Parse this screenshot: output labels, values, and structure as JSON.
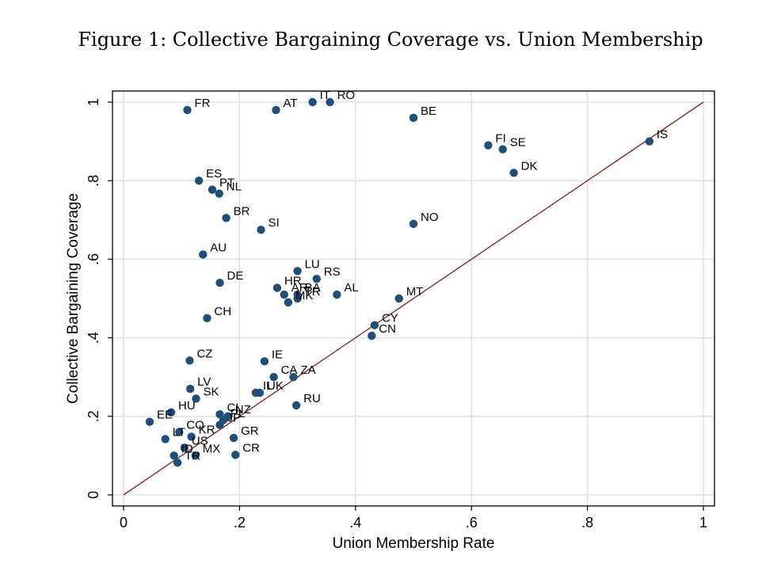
{
  "title": "Figure 1: Collective Bargaining Coverage vs. Union Membership",
  "colors": {
    "marker": "#1f4e79",
    "fit_line": "#8b2a2a",
    "grid": "#e0e0e0",
    "frame": "#000000"
  },
  "chart_data": {
    "type": "scatter",
    "title": "Figure 1: Collective Bargaining Coverage vs. Union Membership",
    "xlabel": "Union Membership Rate",
    "ylabel": "Collective Bargaining Coverage",
    "xlim": [
      0,
      1
    ],
    "ylim": [
      0,
      1
    ],
    "xticks": [
      0,
      0.2,
      0.4,
      0.6,
      0.8,
      1
    ],
    "yticks": [
      0,
      0.2,
      0.4,
      0.6,
      0.8,
      1
    ],
    "xtick_labels": [
      "0",
      ".2",
      ".4",
      ".6",
      ".8",
      "1"
    ],
    "ytick_labels": [
      "0",
      ".2",
      ".4",
      ".6",
      ".8",
      "1"
    ],
    "grid": true,
    "reference_line": {
      "x": [
        0,
        1
      ],
      "y": [
        0,
        1
      ]
    },
    "points": [
      {
        "label": "FR",
        "x": 0.11,
        "y": 0.98
      },
      {
        "label": "AT",
        "x": 0.263,
        "y": 0.98
      },
      {
        "label": "IT",
        "x": 0.326,
        "y": 1.0
      },
      {
        "label": "RO",
        "x": 0.356,
        "y": 1.0
      },
      {
        "label": "BE",
        "x": 0.5,
        "y": 0.96
      },
      {
        "label": "FI",
        "x": 0.629,
        "y": 0.89
      },
      {
        "label": "SE",
        "x": 0.654,
        "y": 0.88
      },
      {
        "label": "DK",
        "x": 0.673,
        "y": 0.82
      },
      {
        "label": "IS",
        "x": 0.907,
        "y": 0.9
      },
      {
        "label": "ES",
        "x": 0.13,
        "y": 0.8
      },
      {
        "label": "PT",
        "x": 0.153,
        "y": 0.777
      },
      {
        "label": "NL",
        "x": 0.165,
        "y": 0.767
      },
      {
        "label": "BR",
        "x": 0.177,
        "y": 0.705
      },
      {
        "label": "SI",
        "x": 0.237,
        "y": 0.675
      },
      {
        "label": "NO",
        "x": 0.5,
        "y": 0.69
      },
      {
        "label": "AU",
        "x": 0.137,
        "y": 0.612
      },
      {
        "label": "DE",
        "x": 0.166,
        "y": 0.54
      },
      {
        "label": "LU",
        "x": 0.3,
        "y": 0.57
      },
      {
        "label": "RS",
        "x": 0.333,
        "y": 0.55
      },
      {
        "label": "HR",
        "x": 0.265,
        "y": 0.527
      },
      {
        "label": "AR",
        "x": 0.277,
        "y": 0.51
      },
      {
        "label": "BA",
        "x": 0.3,
        "y": 0.51
      },
      {
        "label": "MK",
        "x": 0.284,
        "y": 0.49
      },
      {
        "label": "TR",
        "x": 0.3,
        "y": 0.5
      },
      {
        "label": "AL",
        "x": 0.368,
        "y": 0.51
      },
      {
        "label": "MT",
        "x": 0.475,
        "y": 0.5
      },
      {
        "label": "CH",
        "x": 0.144,
        "y": 0.45
      },
      {
        "label": "CY",
        "x": 0.433,
        "y": 0.432
      },
      {
        "label": "CN",
        "x": 0.428,
        "y": 0.405
      },
      {
        "label": "CZ",
        "x": 0.114,
        "y": 0.342
      },
      {
        "label": "IE",
        "x": 0.243,
        "y": 0.34
      },
      {
        "label": "CA",
        "x": 0.259,
        "y": 0.3
      },
      {
        "label": "ZA",
        "x": 0.293,
        "y": 0.3
      },
      {
        "label": "IL",
        "x": 0.228,
        "y": 0.26
      },
      {
        "label": "UK",
        "x": 0.235,
        "y": 0.26
      },
      {
        "label": "LV",
        "x": 0.115,
        "y": 0.27
      },
      {
        "label": "SK",
        "x": 0.125,
        "y": 0.245
      },
      {
        "label": "RU",
        "x": 0.298,
        "y": 0.228
      },
      {
        "label": "HU",
        "x": 0.082,
        "y": 0.21
      },
      {
        "label": "EE",
        "x": 0.045,
        "y": 0.186
      },
      {
        "label": "CL",
        "x": 0.166,
        "y": 0.205
      },
      {
        "label": "NZ",
        "x": 0.18,
        "y": 0.2
      },
      {
        "label": "PL",
        "x": 0.172,
        "y": 0.19
      },
      {
        "label": "JP",
        "x": 0.166,
        "y": 0.178
      },
      {
        "label": "GR",
        "x": 0.19,
        "y": 0.145
      },
      {
        "label": "CO",
        "x": 0.096,
        "y": 0.16
      },
      {
        "label": "KR",
        "x": 0.117,
        "y": 0.148
      },
      {
        "label": "LT",
        "x": 0.072,
        "y": 0.142
      },
      {
        "label": "US",
        "x": 0.105,
        "y": 0.12
      },
      {
        "label": "ID",
        "x": 0.087,
        "y": 0.1
      },
      {
        "label": "MX",
        "x": 0.124,
        "y": 0.1
      },
      {
        "label": "TR",
        "x": 0.093,
        "y": 0.082
      },
      {
        "label": "CR",
        "x": 0.193,
        "y": 0.102
      }
    ]
  }
}
